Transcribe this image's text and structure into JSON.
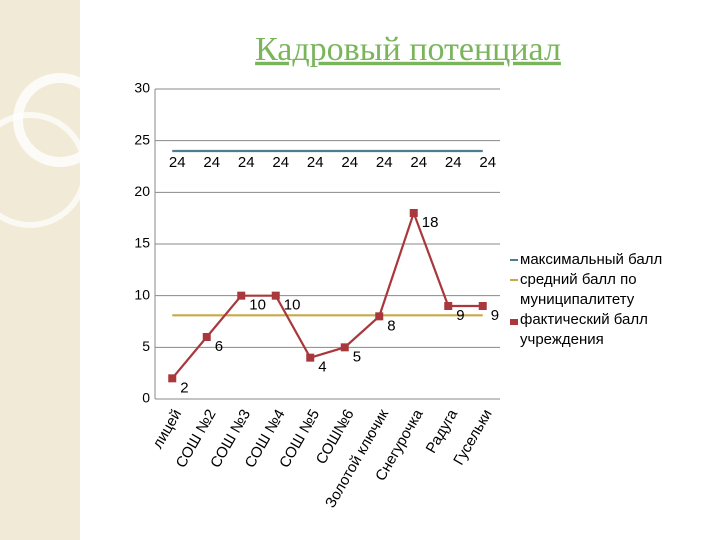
{
  "chart_data": {
    "type": "line",
    "title": "Кадровый потенциал",
    "categories": [
      "лицей",
      "СОШ №2",
      "СОШ №3",
      "СОШ №4",
      "СОШ №5",
      "СОШ№6",
      "Золотой ключик",
      "Снегурочка",
      "Радуга",
      "Гусельки"
    ],
    "series": [
      {
        "name": "максимальный балл",
        "color": "#4a7f8c",
        "values": [
          24,
          24,
          24,
          24,
          24,
          24,
          24,
          24,
          24,
          24
        ],
        "data_labels": true,
        "markers": false
      },
      {
        "name": "средний балл по муниципалитету",
        "color": "#c9a84a",
        "values": [
          8.1,
          8.1,
          8.1,
          8.1,
          8.1,
          8.1,
          8.1,
          8.1,
          8.1,
          8.1
        ],
        "data_labels": false,
        "markers": false
      },
      {
        "name": "фактический балл учреждения",
        "color": "#a8383b",
        "values": [
          2,
          6,
          10,
          10,
          4,
          5,
          8,
          18,
          9,
          9
        ],
        "data_labels": true,
        "markers": true
      }
    ],
    "ylim": [
      0,
      30
    ],
    "yticks": [
      0,
      5,
      10,
      15,
      20,
      25,
      30
    ],
    "grid": true
  }
}
